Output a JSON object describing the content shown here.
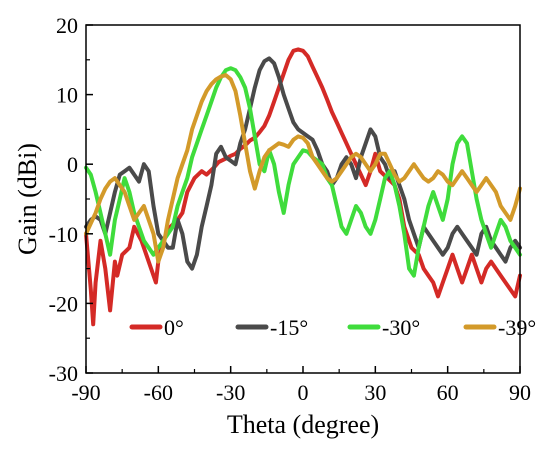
{
  "chart_data": {
    "type": "line",
    "title": "",
    "xlabel": "Theta (degree)",
    "ylabel": "Gain (dBi)",
    "xlim": [
      -90,
      90
    ],
    "ylim": [
      -30,
      20
    ],
    "xticks": [
      -90,
      -60,
      -30,
      0,
      30,
      60,
      90
    ],
    "yticks": [
      -30,
      -20,
      -10,
      0,
      10,
      20
    ],
    "grid": false,
    "legend_position": "bottom-center",
    "series": [
      {
        "name": "0°",
        "color": "#d42a26",
        "x": [
          -90,
          -88,
          -87,
          -86,
          -84,
          -82,
          -80,
          -78,
          -77,
          -75,
          -72,
          -70,
          -67,
          -65,
          -63,
          -61,
          -60,
          -58,
          -55,
          -52,
          -50,
          -48,
          -45,
          -42,
          -40,
          -37,
          -35,
          -32,
          -30,
          -28,
          -26,
          -24,
          -22,
          -20,
          -18,
          -16,
          -14,
          -12,
          -10,
          -8,
          -6,
          -4,
          -2,
          0,
          2,
          4,
          6,
          8,
          10,
          12,
          14,
          16,
          18,
          20,
          22,
          24,
          26,
          28,
          30,
          32,
          35,
          38,
          40,
          42,
          45,
          48,
          50,
          52,
          54,
          56,
          58,
          60,
          62,
          64,
          66,
          68,
          70,
          72,
          74,
          76,
          78,
          80,
          82,
          84,
          86,
          88,
          90
        ],
        "y": [
          -10,
          -18,
          -23,
          -17,
          -11,
          -15,
          -21,
          -14,
          -16,
          -13,
          -12,
          -9,
          -11,
          -13,
          -15,
          -17,
          -14,
          -11,
          -9,
          -8,
          -7,
          -4,
          -2,
          -1,
          -1.5,
          -0.5,
          0.3,
          0.8,
          1.2,
          1.5,
          2.2,
          2.7,
          3.4,
          3.8,
          4.6,
          5.5,
          7,
          9,
          11,
          13,
          15,
          16.3,
          16.5,
          16.3,
          15.5,
          14,
          12.5,
          11,
          9.3,
          7.5,
          6,
          4.5,
          3,
          1.5,
          0,
          -1.5,
          -3,
          -1,
          1.5,
          -1,
          -2,
          -3,
          -5,
          -9,
          -12,
          -13,
          -15,
          -16,
          -17,
          -19,
          -17,
          -15,
          -13,
          -15,
          -17,
          -15,
          -13,
          -15,
          -17,
          -15,
          -14,
          -15,
          -16,
          -17,
          -18,
          -19,
          -16
        ]
      },
      {
        "name": "-15°",
        "color": "#4a4a4a",
        "x": [
          -90,
          -88,
          -86,
          -84,
          -82,
          -80,
          -78,
          -76,
          -74,
          -72,
          -70,
          -68,
          -66,
          -64,
          -62,
          -60,
          -58,
          -56,
          -54,
          -52,
          -50,
          -48,
          -46,
          -44,
          -42,
          -40,
          -38,
          -36,
          -34,
          -32,
          -30,
          -28,
          -26,
          -24,
          -22,
          -20,
          -18,
          -16,
          -14,
          -12,
          -10,
          -8,
          -6,
          -4,
          -2,
          0,
          2,
          4,
          6,
          8,
          10,
          12,
          14,
          16,
          18,
          20,
          22,
          24,
          26,
          28,
          30,
          32,
          34,
          36,
          38,
          40,
          42,
          44,
          46,
          48,
          50,
          52,
          54,
          56,
          58,
          60,
          62,
          64,
          66,
          68,
          70,
          72,
          74,
          76,
          78,
          80,
          82,
          84,
          86,
          88,
          90
        ],
        "y": [
          -9,
          -8,
          -7.5,
          -8,
          -10,
          -7,
          -4,
          -1.5,
          -1,
          -0.5,
          -1.5,
          -2.5,
          0,
          -1,
          -6,
          -10,
          -11,
          -12,
          -12,
          -8,
          -10,
          -14,
          -15,
          -13,
          -9,
          -6,
          -3,
          1.5,
          2.5,
          1,
          0.5,
          0,
          3,
          5,
          8,
          11,
          13.5,
          14.8,
          15.2,
          14.5,
          12.5,
          10,
          8,
          6,
          5,
          4.5,
          4,
          3.5,
          2,
          0,
          -1,
          -3,
          -2,
          0,
          1,
          0,
          -2,
          1,
          3,
          5,
          4,
          1,
          0,
          -2,
          -1,
          -3,
          -5,
          -8,
          -10,
          -12,
          -9,
          -10,
          -11,
          -12,
          -13,
          -12,
          -10,
          -9,
          -10,
          -11,
          -12,
          -13,
          -10,
          -9,
          -11,
          -12,
          -13,
          -14,
          -12,
          -11,
          -12
        ]
      },
      {
        "name": "-30°",
        "color": "#3fdc3c",
        "x": [
          -90,
          -88,
          -86,
          -84,
          -82,
          -80,
          -78,
          -76,
          -74,
          -72,
          -70,
          -68,
          -66,
          -64,
          -62,
          -60,
          -58,
          -56,
          -54,
          -52,
          -50,
          -48,
          -46,
          -44,
          -42,
          -40,
          -38,
          -36,
          -34,
          -32,
          -30,
          -28,
          -26,
          -24,
          -22,
          -20,
          -18,
          -16,
          -14,
          -12,
          -10,
          -8,
          -6,
          -4,
          -2,
          0,
          2,
          4,
          6,
          8,
          10,
          12,
          14,
          16,
          18,
          20,
          22,
          24,
          26,
          28,
          30,
          32,
          34,
          36,
          38,
          40,
          42,
          44,
          46,
          48,
          50,
          52,
          54,
          56,
          58,
          60,
          62,
          64,
          66,
          68,
          70,
          72,
          74,
          76,
          78,
          80,
          82,
          84,
          86,
          88,
          90
        ],
        "y": [
          -0.5,
          -1.5,
          -4,
          -7,
          -10,
          -13,
          -8,
          -5,
          -2,
          -4,
          -7,
          -9,
          -11,
          -12,
          -13,
          -12,
          -11,
          -10,
          -9,
          -6,
          -4,
          -2,
          1,
          3,
          5,
          7,
          9,
          11,
          12.5,
          13.5,
          13.8,
          13.5,
          12.5,
          11,
          8,
          4,
          0,
          -1,
          2,
          0,
          -4,
          -7,
          -3,
          0,
          1,
          2,
          1.8,
          1,
          0.5,
          0,
          -2,
          -3,
          -6,
          -9,
          -10,
          -8,
          -6,
          -7,
          -9,
          -10,
          -8,
          -5,
          -2,
          -1,
          -3,
          -6,
          -10,
          -15,
          -16,
          -12,
          -9,
          -6,
          -4,
          -6,
          -8,
          -5,
          0,
          3,
          4,
          3,
          -1,
          -5,
          -8,
          -10,
          -12,
          -10,
          -8,
          -9,
          -11,
          -12,
          -13
        ]
      },
      {
        "name": "-39°",
        "color": "#d39a2a",
        "x": [
          -90,
          -88,
          -86,
          -84,
          -82,
          -80,
          -78,
          -76,
          -74,
          -72,
          -70,
          -68,
          -66,
          -64,
          -62,
          -60,
          -58,
          -56,
          -54,
          -52,
          -50,
          -48,
          -46,
          -44,
          -42,
          -40,
          -38,
          -36,
          -34,
          -32,
          -30,
          -28,
          -26,
          -24,
          -22,
          -20,
          -18,
          -16,
          -14,
          -12,
          -10,
          -8,
          -6,
          -4,
          -2,
          0,
          2,
          4,
          6,
          8,
          10,
          12,
          14,
          16,
          18,
          20,
          22,
          24,
          26,
          28,
          30,
          32,
          34,
          36,
          38,
          40,
          42,
          44,
          46,
          48,
          50,
          52,
          54,
          56,
          58,
          60,
          62,
          64,
          66,
          68,
          70,
          72,
          74,
          76,
          78,
          80,
          82,
          84,
          86,
          88,
          90
        ],
        "y": [
          -10,
          -8.5,
          -7,
          -5,
          -3.5,
          -2.5,
          -2,
          -3,
          -4,
          -6,
          -8,
          -7,
          -6,
          -8,
          -10,
          -14,
          -12,
          -8,
          -5,
          -2,
          0,
          2,
          5,
          7,
          9,
          10.5,
          11.5,
          12.2,
          12.6,
          12.8,
          12.2,
          10.5,
          7,
          3,
          -1,
          -3.5,
          -1,
          1,
          2,
          2.5,
          3,
          2.8,
          2.5,
          3.5,
          4,
          3.8,
          3,
          1,
          0,
          -1,
          -2,
          -2.5,
          -2,
          -1,
          0,
          1,
          1.5,
          1,
          0,
          -1,
          0,
          1.5,
          1.5,
          0,
          -1.5,
          -2.5,
          -2,
          -1,
          0,
          -1,
          -2,
          -2.5,
          -2,
          -1,
          -1.5,
          -2.5,
          -3,
          -2,
          -1,
          -2,
          -3,
          -4,
          -3,
          -2,
          -3,
          -4,
          -6,
          -7,
          -8,
          -6,
          -3.5
        ]
      }
    ]
  }
}
